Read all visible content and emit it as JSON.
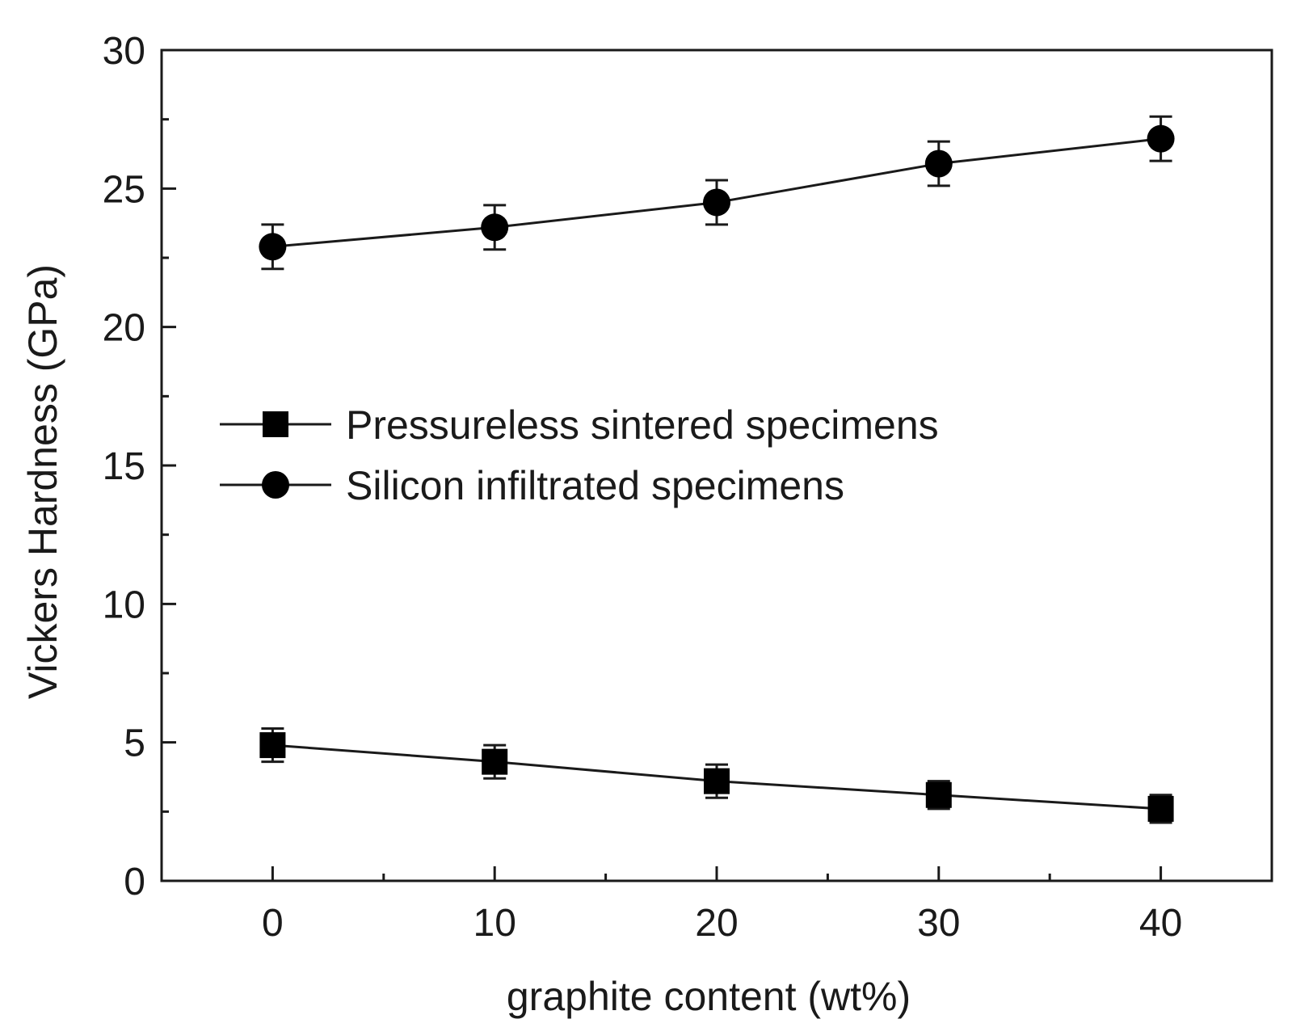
{
  "chart_data": {
    "type": "line",
    "title": "",
    "xlabel": "graphite content (wt%)",
    "ylabel": "Vickers Hardness (GPa)",
    "xlim": [
      -5,
      45
    ],
    "ylim": [
      0,
      30
    ],
    "xticks": [
      0,
      10,
      20,
      30,
      40
    ],
    "xticks_minor": [
      5,
      15,
      25,
      35
    ],
    "yticks": [
      0,
      5,
      10,
      15,
      20,
      25,
      30
    ],
    "yticks_minor": [
      2.5,
      7.5,
      12.5,
      17.5,
      22.5,
      27.5
    ],
    "grid": false,
    "legend_position": "center-left",
    "x": [
      0,
      10,
      20,
      30,
      40
    ],
    "series": [
      {
        "name": "Pressureless sintered specimens",
        "marker": "square",
        "values": [
          4.9,
          4.3,
          3.6,
          3.1,
          2.6
        ],
        "errors": [
          0.6,
          0.6,
          0.6,
          0.5,
          0.5
        ]
      },
      {
        "name": "Silicon infiltrated specimens",
        "marker": "circle",
        "values": [
          22.9,
          23.6,
          24.5,
          25.9,
          26.8
        ],
        "errors": [
          0.8,
          0.8,
          0.8,
          0.8,
          0.8
        ]
      }
    ],
    "colors": {
      "line": "#1a1a1a",
      "marker": "#000000",
      "background": "#ffffff"
    }
  }
}
